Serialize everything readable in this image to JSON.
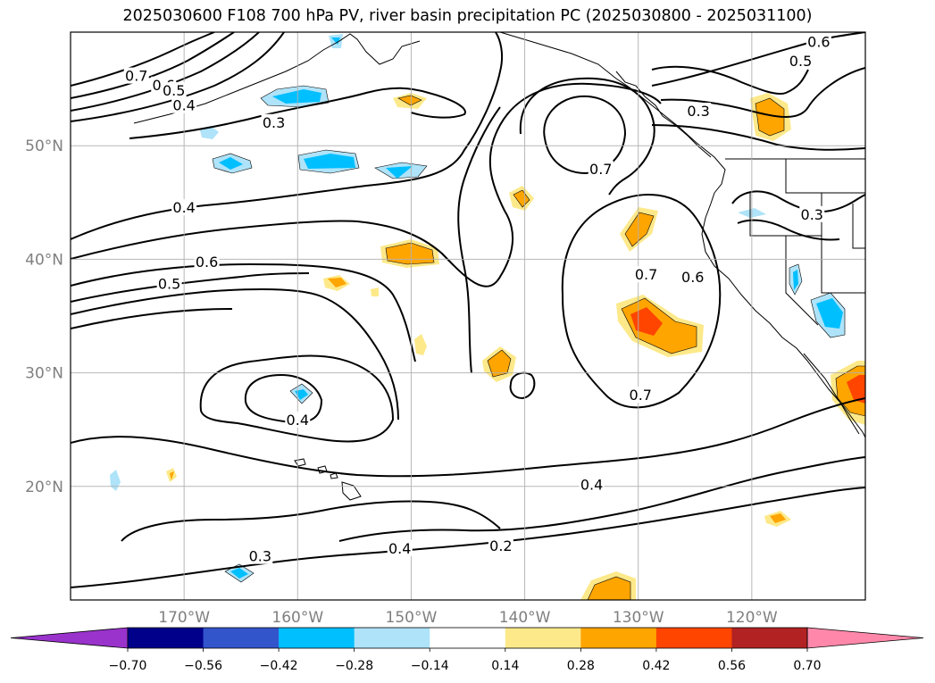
{
  "title": "2025030600 F108 700 hPa PV, river basin precipitation PC (2025030800 - 2025031100)",
  "map": {
    "projection": "plate-carree",
    "lon_range": [
      -180,
      -110
    ],
    "lat_range": [
      10,
      60
    ],
    "grid": true,
    "lat_ticks": [
      {
        "lat": 50,
        "label": "50°N"
      },
      {
        "lat": 40,
        "label": "40°N"
      },
      {
        "lat": 30,
        "label": "30°N"
      },
      {
        "lat": 20,
        "label": "20°N"
      }
    ],
    "lon_ticks": [
      {
        "lon": -170,
        "label": "170°W"
      },
      {
        "lon": -160,
        "label": "160°W"
      },
      {
        "lon": -150,
        "label": "150°W"
      },
      {
        "lon": -140,
        "label": "140°W"
      },
      {
        "lon": -130,
        "label": "130°W"
      },
      {
        "lon": -120,
        "label": "120°W"
      }
    ]
  },
  "pv_contour_labels": [
    {
      "text": "0.7",
      "lon": -174.2,
      "lat": 56.1
    },
    {
      "text": "0.6",
      "lon": -171.8,
      "lat": 55.3
    },
    {
      "text": "0.5",
      "lon": -170.9,
      "lat": 54.8
    },
    {
      "text": "0.4",
      "lon": -170.0,
      "lat": 53.5
    },
    {
      "text": "0.3",
      "lon": -162.1,
      "lat": 52.0
    },
    {
      "text": "0.6",
      "lon": -114.1,
      "lat": 59.1
    },
    {
      "text": "0.5",
      "lon": -115.7,
      "lat": 57.4
    },
    {
      "text": "0.3",
      "lon": -124.7,
      "lat": 53.0
    },
    {
      "text": "0.7",
      "lon": -133.3,
      "lat": 47.9
    },
    {
      "text": "0.3",
      "lon": -114.7,
      "lat": 43.9
    },
    {
      "text": "0.4",
      "lon": -170.0,
      "lat": 44.5
    },
    {
      "text": "0.6",
      "lon": -168.0,
      "lat": 39.7
    },
    {
      "text": "0.5",
      "lon": -171.3,
      "lat": 37.8
    },
    {
      "text": "0.7",
      "lon": -129.3,
      "lat": 38.6
    },
    {
      "text": "0.6",
      "lon": -125.2,
      "lat": 38.4
    },
    {
      "text": "0.7",
      "lon": -129.8,
      "lat": 28.0
    },
    {
      "text": "0.4",
      "lon": -160.0,
      "lat": 25.8
    },
    {
      "text": "0.4",
      "lon": -134.1,
      "lat": 20.1
    },
    {
      "text": "0.4",
      "lon": -151.0,
      "lat": 14.5
    },
    {
      "text": "0.2",
      "lon": -142.1,
      "lat": 14.7
    },
    {
      "text": "0.3",
      "lon": -163.3,
      "lat": 13.8
    }
  ],
  "colorbar": {
    "levels": [
      -0.7,
      -0.56,
      -0.42,
      -0.28,
      -0.14,
      0.14,
      0.28,
      0.42,
      0.56,
      0.7
    ],
    "tick_labels": [
      "−0.70",
      "−0.56",
      "−0.42",
      "−0.28",
      "−0.14",
      "0.14",
      "0.28",
      "0.42",
      "0.56",
      "0.70"
    ],
    "colors": [
      "#9933cc",
      "#00008b",
      "#3355cc",
      "#00bfff",
      "#aee3f9",
      "#ffffff",
      "#fde98a",
      "#ffa500",
      "#ff4500",
      "#b22222",
      "#ff88aa"
    ],
    "extend": "both"
  }
}
